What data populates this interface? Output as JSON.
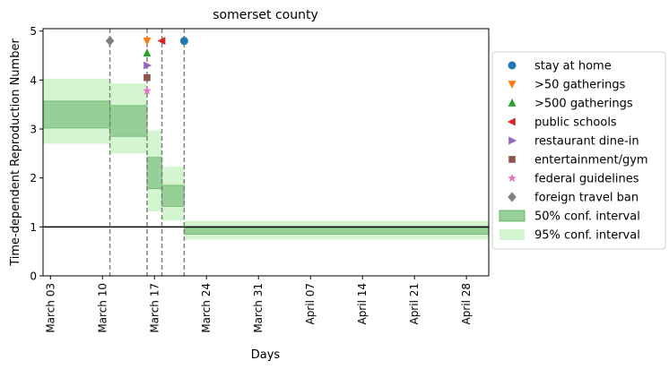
{
  "chart_data": {
    "type": "step-area",
    "title": "somerset county",
    "xlabel": "Days",
    "ylabel": "Time-dependent Reproduction Number",
    "x_range": [
      "2020-03-02",
      "2020-05-01"
    ],
    "ylim": [
      0,
      5.05
    ],
    "x_ticks": [
      {
        "date": "2020-03-03",
        "label": "March 03"
      },
      {
        "date": "2020-03-10",
        "label": "March 10"
      },
      {
        "date": "2020-03-17",
        "label": "March 17"
      },
      {
        "date": "2020-03-24",
        "label": "March 24"
      },
      {
        "date": "2020-03-31",
        "label": "March 31"
      },
      {
        "date": "2020-04-07",
        "label": "April 07"
      },
      {
        "date": "2020-04-14",
        "label": "April 14"
      },
      {
        "date": "2020-04-21",
        "label": "April 21"
      },
      {
        "date": "2020-04-28",
        "label": "April 28"
      }
    ],
    "y_ticks": [
      0,
      1,
      2,
      3,
      4,
      5
    ],
    "reference_line": {
      "y": 1,
      "color": "#000000"
    },
    "intervals": [
      {
        "start": "2020-03-02",
        "end": "2020-03-11",
        "ci50": [
          3.02,
          3.57
        ],
        "ci95": [
          2.7,
          4.03
        ]
      },
      {
        "start": "2020-03-11",
        "end": "2020-03-16",
        "ci50": [
          2.85,
          3.48
        ],
        "ci95": [
          2.5,
          3.93
        ]
      },
      {
        "start": "2020-03-16",
        "end": "2020-03-18",
        "ci50": [
          1.78,
          2.42
        ],
        "ci95": [
          1.32,
          2.97
        ]
      },
      {
        "start": "2020-03-18",
        "end": "2020-03-21",
        "ci50": [
          1.42,
          1.85
        ],
        "ci95": [
          1.13,
          2.23
        ]
      },
      {
        "start": "2020-03-21",
        "end": "2020-05-01",
        "ci50": [
          0.85,
          0.98
        ],
        "ci95": [
          0.74,
          1.12
        ]
      }
    ],
    "interventions": [
      {
        "name": "stay at home",
        "date": "2020-03-21",
        "y": 4.8,
        "marker": "circle",
        "color": "#1f77b4"
      },
      {
        "name": ">50 gatherings",
        "date": "2020-03-16",
        "y": 4.8,
        "marker": "triangle-down",
        "color": "#ff7f0e"
      },
      {
        "name": ">500 gatherings",
        "date": "2020-03-16",
        "y": 4.55,
        "marker": "triangle-up",
        "color": "#2ca02c"
      },
      {
        "name": "public schools",
        "date": "2020-03-18",
        "y": 4.8,
        "marker": "triangle-left",
        "color": "#d62728"
      },
      {
        "name": "restaurant dine-in",
        "date": "2020-03-16",
        "y": 4.3,
        "marker": "triangle-right",
        "color": "#9467bd"
      },
      {
        "name": "entertainment/gym",
        "date": "2020-03-16",
        "y": 4.05,
        "marker": "square",
        "color": "#8c564b"
      },
      {
        "name": "federal guidelines",
        "date": "2020-03-16",
        "y": 3.78,
        "marker": "star",
        "color": "#e377c2"
      },
      {
        "name": "foreign travel ban",
        "date": "2020-03-11",
        "y": 4.8,
        "marker": "diamond",
        "color": "#7f7f7f"
      }
    ],
    "vlines": [
      "2020-03-11",
      "2020-03-16",
      "2020-03-18",
      "2020-03-21"
    ],
    "legend": {
      "position": "right",
      "entries": [
        {
          "label": "stay at home",
          "marker": "circle",
          "color": "#1f77b4"
        },
        {
          "label": ">50 gatherings",
          "marker": "triangle-down",
          "color": "#ff7f0e"
        },
        {
          "label": ">500 gatherings",
          "marker": "triangle-up",
          "color": "#2ca02c"
        },
        {
          "label": "public schools",
          "marker": "triangle-left",
          "color": "#d62728"
        },
        {
          "label": "restaurant dine-in",
          "marker": "triangle-right",
          "color": "#9467bd"
        },
        {
          "label": "entertainment/gym",
          "marker": "square",
          "color": "#8c564b"
        },
        {
          "label": "federal guidelines",
          "marker": "star",
          "color": "#e377c2"
        },
        {
          "label": "foreign travel ban",
          "marker": "diamond",
          "color": "#7f7f7f"
        },
        {
          "label": "50% conf. interval",
          "marker": "patch50"
        },
        {
          "label": "95% conf. interval",
          "marker": "patch95"
        }
      ]
    },
    "colors": {
      "ci50_fill": "#96d096",
      "ci50_edge": "#6cb36c",
      "ci95_fill": "#d3f6d0",
      "vline": "#7f7f7f"
    }
  }
}
